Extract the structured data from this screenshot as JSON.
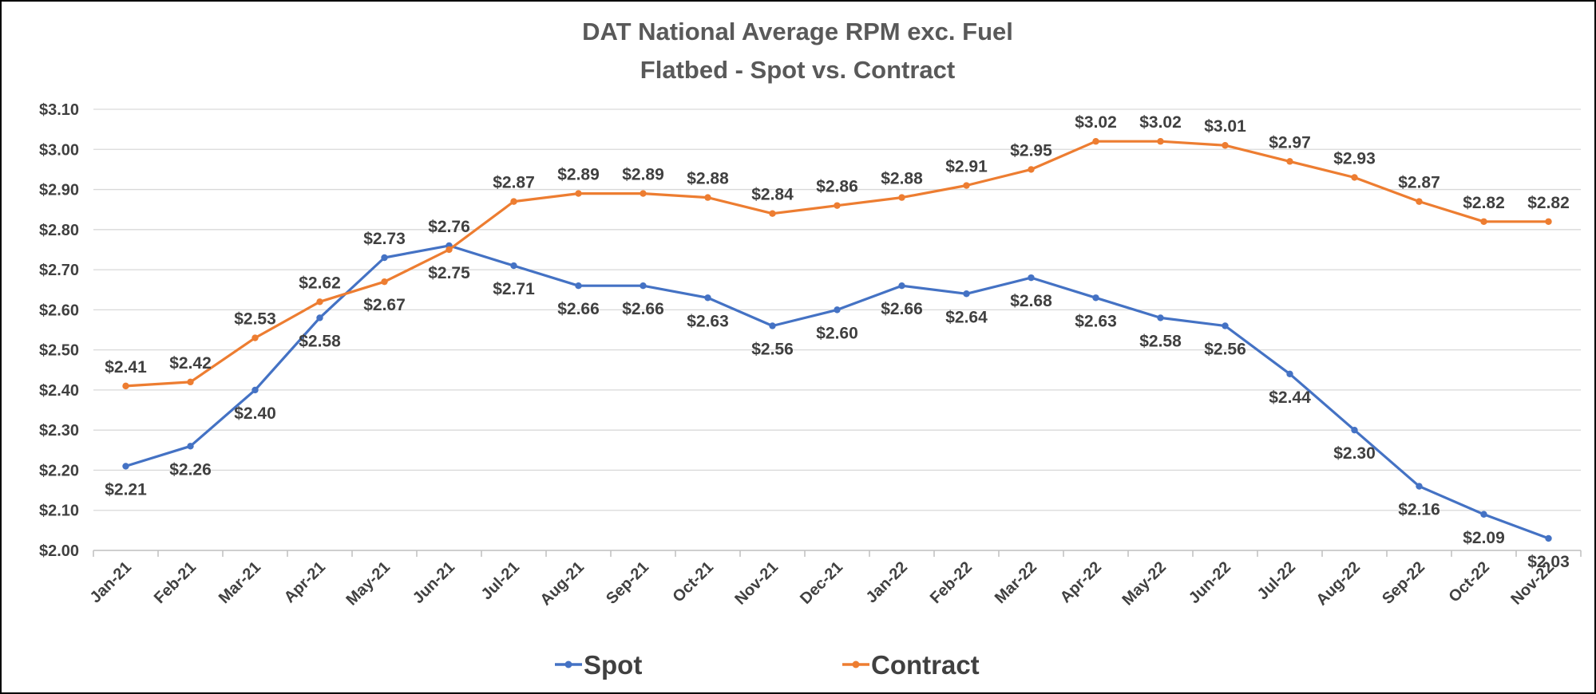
{
  "chart_data": {
    "type": "line",
    "title": "DAT National Average RPM exc. Fuel",
    "subtitle": "Flatbed - Spot vs. Contract",
    "categories": [
      "Jan-21",
      "Feb-21",
      "Mar-21",
      "Apr-21",
      "May-21",
      "Jun-21",
      "Jul-21",
      "Aug-21",
      "Sep-21",
      "Oct-21",
      "Nov-21",
      "Dec-21",
      "Jan-22",
      "Feb-22",
      "Mar-22",
      "Apr-22",
      "May-22",
      "Jun-22",
      "Jul-22",
      "Aug-22",
      "Sep-22",
      "Oct-22",
      "Nov-22"
    ],
    "ylim": [
      2.0,
      3.1
    ],
    "yticks": [
      "$2.00",
      "$2.10",
      "$2.20",
      "$2.30",
      "$2.40",
      "$2.50",
      "$2.60",
      "$2.70",
      "$2.80",
      "$2.90",
      "$3.00",
      "$3.10"
    ],
    "grid": true,
    "legend_position": "bottom",
    "series": [
      {
        "name": "Spot",
        "color": "#4472c4",
        "values": [
          2.21,
          2.26,
          2.4,
          2.58,
          2.73,
          2.76,
          2.71,
          2.66,
          2.66,
          2.63,
          2.56,
          2.6,
          2.66,
          2.64,
          2.68,
          2.63,
          2.58,
          2.56,
          2.44,
          2.3,
          2.16,
          2.09,
          2.03
        ],
        "labels": [
          "$2.21",
          "$2.26",
          "$2.40",
          "$2.58",
          "$2.73",
          "$2.76",
          "$2.71",
          "$2.66",
          "$2.66",
          "$2.63",
          "$2.56",
          "$2.60",
          "$2.66",
          "$2.64",
          "$2.68",
          "$2.63",
          "$2.58",
          "$2.56",
          "$2.44",
          "$2.30",
          "$2.16",
          "$2.09",
          "$2.03"
        ]
      },
      {
        "name": "Contract",
        "color": "#ed7d31",
        "values": [
          2.41,
          2.42,
          2.53,
          2.62,
          2.67,
          2.75,
          2.87,
          2.89,
          2.89,
          2.88,
          2.84,
          2.86,
          2.88,
          2.91,
          2.95,
          3.02,
          3.02,
          3.01,
          2.97,
          2.93,
          2.87,
          2.82,
          2.82
        ],
        "labels": [
          "$2.41",
          "$2.42",
          "$2.53",
          "$2.62",
          "$2.67",
          "$2.75",
          "$2.87",
          "$2.89",
          "$2.89",
          "$2.88",
          "$2.84",
          "$2.86",
          "$2.88",
          "$2.91",
          "$2.95",
          "$3.02",
          "$3.02",
          "$3.01",
          "$2.97",
          "$2.93",
          "$2.87",
          "$2.82",
          "$2.82"
        ]
      }
    ]
  }
}
